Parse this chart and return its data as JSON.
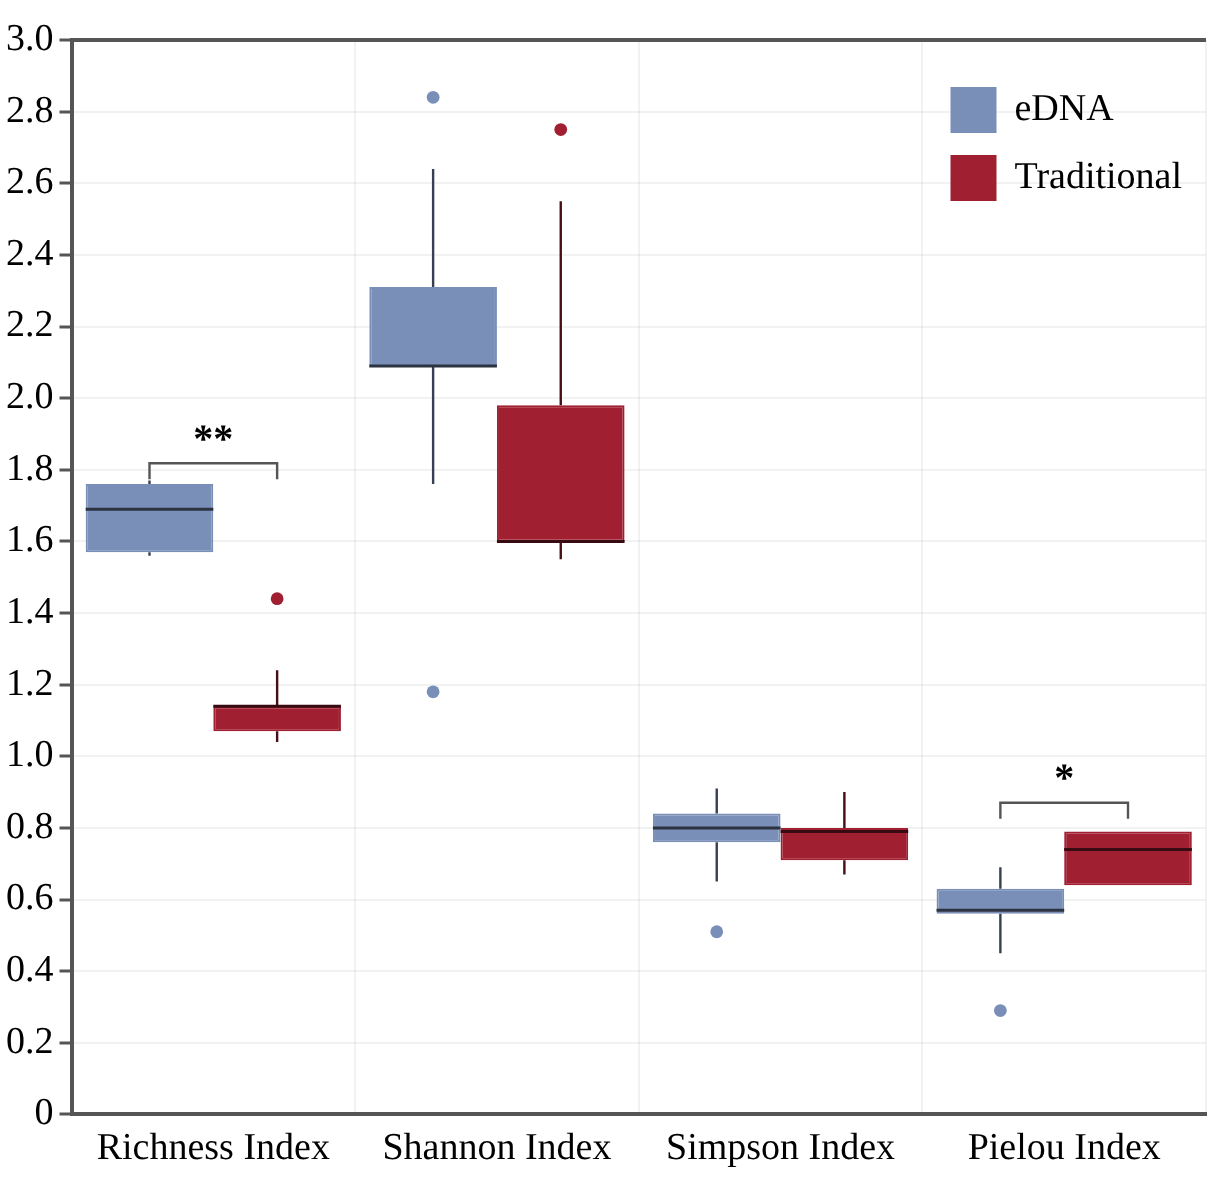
{
  "chart_data": {
    "type": "box",
    "categories": [
      "Richness Index",
      "Shannon Index",
      "Simpson Index",
      "Pielou Index"
    ],
    "series": [
      {
        "name": "eDNA",
        "color": "#7a8fb8",
        "boxes": [
          {
            "low": 1.56,
            "q1": 1.57,
            "median": 1.69,
            "q3": 1.76,
            "high": 1.77
          },
          {
            "low": 1.76,
            "q1": 2.09,
            "median": 2.09,
            "q3": 2.31,
            "high": 2.64,
            "outliers": [
              2.84,
              1.18
            ]
          },
          {
            "low": 0.65,
            "q1": 0.76,
            "median": 0.8,
            "q3": 0.84,
            "high": 0.91,
            "outliers": [
              0.51
            ]
          },
          {
            "low": 0.45,
            "q1": 0.56,
            "median": 0.57,
            "q3": 0.63,
            "high": 0.69,
            "outliers": [
              0.29
            ]
          }
        ]
      },
      {
        "name": "Traditional",
        "color": "#a02032",
        "boxes": [
          {
            "low": 1.04,
            "q1": 1.07,
            "median": 1.14,
            "q3": 1.14,
            "high": 1.24,
            "outliers": [
              1.44
            ]
          },
          {
            "low": 1.55,
            "q1": 1.6,
            "median": 1.6,
            "q3": 1.98,
            "high": 2.55,
            "outliers": [
              2.75
            ]
          },
          {
            "low": 0.67,
            "q1": 0.71,
            "median": 0.79,
            "q3": 0.8,
            "high": 0.9
          },
          {
            "low": 0.64,
            "q1": 0.64,
            "median": 0.74,
            "q3": 0.79,
            "high": 0.79
          }
        ]
      }
    ],
    "ylim": [
      0,
      3
    ],
    "yticks": [
      0,
      0.2,
      0.4,
      0.6,
      0.8,
      {
        "value": 1,
        "label": "1.0"
      },
      1.2,
      1.4,
      1.6,
      1.8,
      {
        "value": 2,
        "label": "2.0"
      },
      2.2,
      2.4,
      2.6,
      2.8,
      {
        "value": 3,
        "label": "3.0"
      }
    ],
    "grid": true,
    "legend": "top right",
    "annotations": [
      "**",
      "*"
    ]
  }
}
